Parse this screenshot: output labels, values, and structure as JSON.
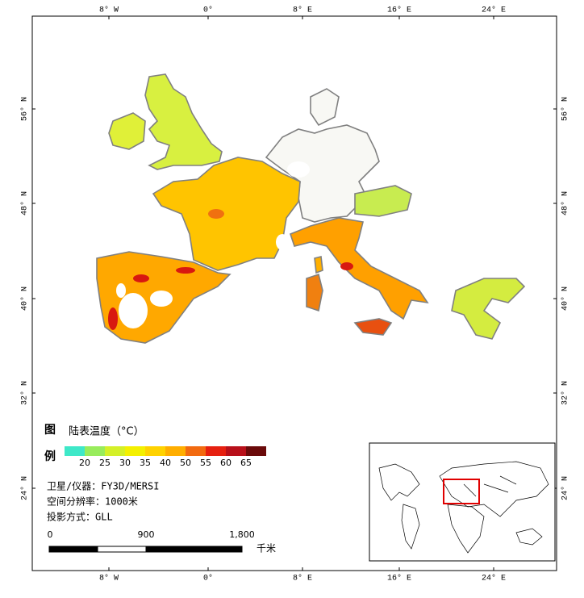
{
  "map": {
    "lon_labels": [
      "8° W",
      "0°",
      "8° E",
      "16° E",
      "24° E"
    ],
    "lat_labels": [
      "56° N",
      "48° N",
      "40° N",
      "32° N",
      "24° N"
    ],
    "legend": {
      "char_top": "图",
      "char_bottom": "例",
      "title": "陆表温度（°C）",
      "colors": [
        "#3ee8c8",
        "#98ec5c",
        "#d4f028",
        "#f4f000",
        "#ffd200",
        "#ffae00",
        "#f26a10",
        "#e62010",
        "#b8101a",
        "#6a0a0a"
      ],
      "labels": [
        "20",
        "25",
        "30",
        "35",
        "40",
        "50",
        "55",
        "60",
        "65"
      ]
    },
    "info": [
      "卫星/仪器：FY3D/MERSI",
      "空间分辨率：1000米",
      "投影方式：GLL"
    ],
    "scale_bar": {
      "labels": [
        "0",
        "900",
        "1,800"
      ],
      "unit": "千米"
    }
  }
}
